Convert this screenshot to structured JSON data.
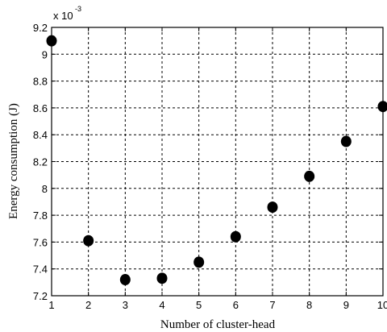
{
  "chart_data": {
    "type": "scatter",
    "xlabel": "Number of cluster-head",
    "ylabel": "Energy consumption (J)",
    "y_multiplier": {
      "base": "x 10",
      "exponent": "-3"
    },
    "x_ticks": [
      "1",
      "2",
      "3",
      "4",
      "5",
      "6",
      "7",
      "8",
      "9",
      "10"
    ],
    "y_ticks": [
      "7.2",
      "7.4",
      "7.6",
      "7.8",
      "8",
      "8.2",
      "8.4",
      "8.6",
      "8.8",
      "9",
      "9.2"
    ],
    "xlim": [
      1,
      10
    ],
    "ylim": [
      7.2,
      9.2
    ],
    "grid": true,
    "legend": false,
    "point_color": "#000000",
    "series": [
      {
        "x": [
          1,
          2,
          3,
          4,
          5,
          6,
          7,
          8,
          9,
          10
        ],
        "y": [
          9.1,
          7.61,
          7.32,
          7.33,
          7.45,
          7.64,
          7.86,
          8.09,
          8.35,
          8.61
        ]
      }
    ]
  }
}
